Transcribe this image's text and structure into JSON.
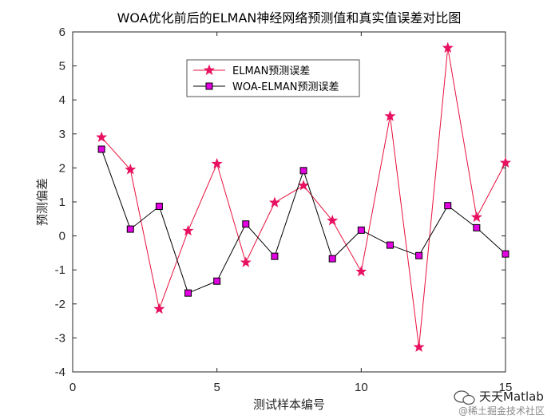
{
  "chart_data": {
    "type": "line",
    "title": "WOA优化前后的ELMAN神经网络预测值和真实值误差对比图",
    "xlabel": "测试样本编号",
    "ylabel": "预测偏差",
    "xlim": [
      0,
      15
    ],
    "ylim": [
      -4,
      6
    ],
    "xticks": [
      0,
      5,
      10,
      15
    ],
    "yticks": [
      -4,
      -3,
      -2,
      -1,
      0,
      1,
      2,
      3,
      4,
      5,
      6
    ],
    "x": [
      1,
      2,
      3,
      4,
      5,
      6,
      7,
      8,
      9,
      10,
      11,
      12,
      13,
      14,
      15
    ],
    "series": [
      {
        "name": "ELMAN预测误差",
        "color": "#e8103e",
        "marker": "star",
        "marker_color": "#e81060",
        "values": [
          2.9,
          1.95,
          -2.15,
          0.15,
          2.12,
          -0.78,
          0.98,
          1.48,
          0.45,
          -1.05,
          3.52,
          -3.27,
          5.53,
          0.55,
          2.15
        ]
      },
      {
        "name": "WOA-ELMAN预测误差",
        "color": "#000000",
        "marker": "square",
        "marker_color": "#e000e0",
        "values": [
          2.55,
          0.2,
          0.87,
          -1.68,
          -1.33,
          0.35,
          -0.6,
          1.92,
          -0.67,
          0.17,
          -0.27,
          -0.58,
          0.89,
          0.24,
          -0.53
        ]
      }
    ],
    "legend_position": "top-center",
    "grid": false
  },
  "watermark": {
    "title": "天天Matlab",
    "subtitle": "@稀土掘金技术社区"
  }
}
